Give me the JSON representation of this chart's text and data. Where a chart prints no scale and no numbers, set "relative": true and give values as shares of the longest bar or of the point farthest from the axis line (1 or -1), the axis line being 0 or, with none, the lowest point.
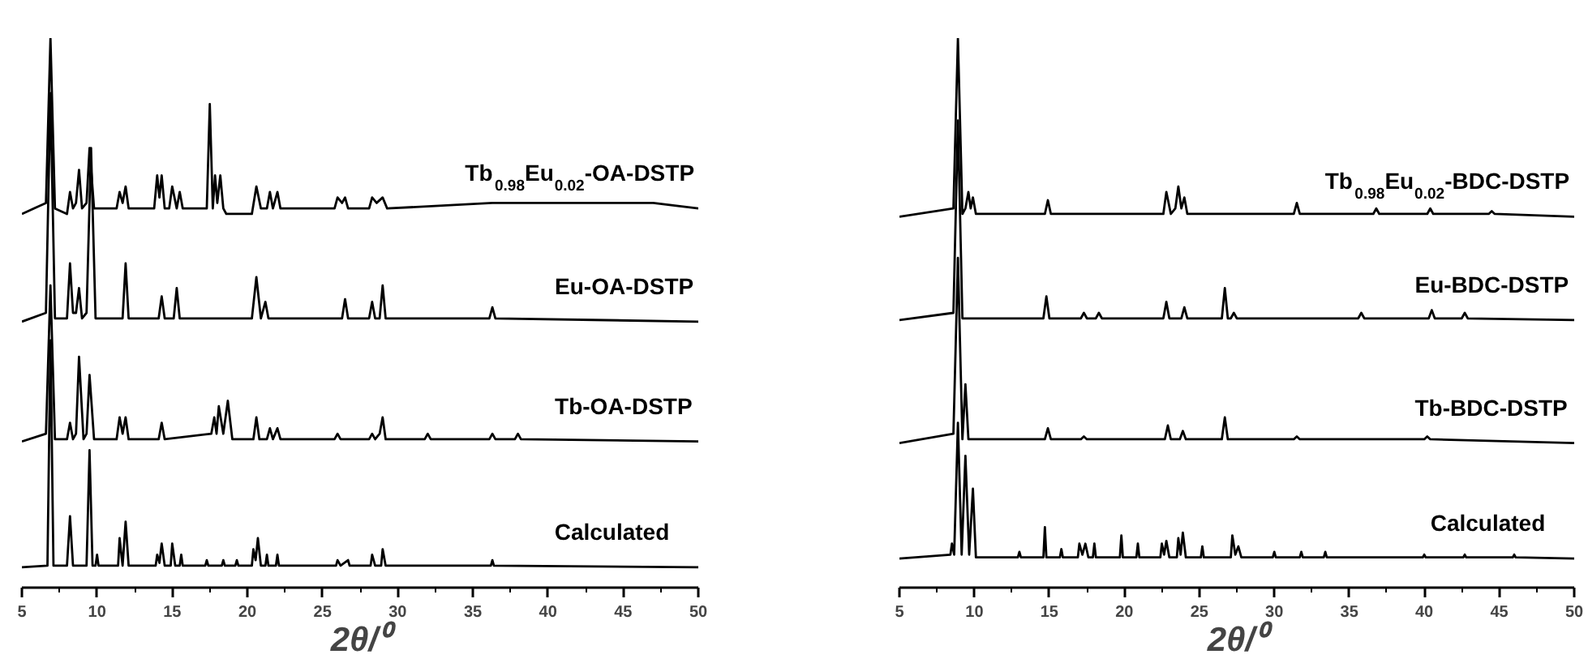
{
  "chart_data": [
    {
      "type": "line",
      "relative": true,
      "xlabel": "2θ/⁰",
      "xlim": [
        5,
        50
      ],
      "xticks": [
        5,
        10,
        15,
        20,
        25,
        30,
        35,
        40,
        45,
        50
      ],
      "tick_labels": "x",
      "grid": false,
      "marker": "none",
      "line_style": "solid",
      "series": [
        {
          "name": "Tb$_{0.98}$Eu$_{0.02}$-OA-DSTP",
          "color": "#000000",
          "x": [
            5,
            6.6,
            6.9,
            7.2,
            8.0,
            8.2,
            8.4,
            8.6,
            8.8,
            9.0,
            9.3,
            9.5,
            9.8,
            11.3,
            11.5,
            11.7,
            11.9,
            12.1,
            13.8,
            14.0,
            14.15,
            14.3,
            14.5,
            14.8,
            15.0,
            15.3,
            15.5,
            15.7,
            17.3,
            17.5,
            17.7,
            17.85,
            18.0,
            18.2,
            18.4,
            18.6,
            20.3,
            20.6,
            20.9,
            21.3,
            21.5,
            21.7,
            22.0,
            22.2,
            25.8,
            26.0,
            26.3,
            26.5,
            26.7,
            28.1,
            28.3,
            28.6,
            29.0,
            29.3,
            36.3,
            41.5,
            43,
            47,
            50
          ],
          "values": [
            0.68,
            0.7,
            1.0,
            0.69,
            0.68,
            0.72,
            0.69,
            0.7,
            0.76,
            0.69,
            0.7,
            0.8,
            0.69,
            0.69,
            0.72,
            0.7,
            0.73,
            0.69,
            0.69,
            0.75,
            0.71,
            0.75,
            0.69,
            0.69,
            0.73,
            0.69,
            0.72,
            0.69,
            0.69,
            0.88,
            0.69,
            0.75,
            0.7,
            0.75,
            0.69,
            0.68,
            0.68,
            0.73,
            0.69,
            0.69,
            0.72,
            0.69,
            0.72,
            0.69,
            0.69,
            0.71,
            0.7,
            0.71,
            0.69,
            0.69,
            0.71,
            0.7,
            0.71,
            0.69,
            0.7,
            0.7,
            0.7,
            0.7,
            0.69
          ]
        },
        {
          "name": "Eu-OA-DSTP",
          "color": "#000000",
          "x": [
            5,
            6.6,
            6.9,
            7.2,
            8.0,
            8.2,
            8.4,
            8.6,
            8.8,
            9.0,
            9.3,
            9.6,
            9.9,
            11.7,
            11.9,
            12.1,
            14.1,
            14.3,
            14.5,
            15.1,
            15.3,
            15.5,
            20.3,
            20.6,
            20.9,
            21.2,
            21.4,
            26.3,
            26.5,
            26.7,
            28.1,
            28.3,
            28.5,
            28.8,
            29.0,
            29.2,
            36.1,
            36.3,
            36.5,
            50
          ],
          "values": [
            0.484,
            0.5,
            0.9,
            0.49,
            0.49,
            0.59,
            0.5,
            0.5,
            0.545,
            0.49,
            0.5,
            0.8,
            0.49,
            0.49,
            0.59,
            0.49,
            0.49,
            0.53,
            0.49,
            0.49,
            0.545,
            0.49,
            0.49,
            0.565,
            0.49,
            0.52,
            0.49,
            0.49,
            0.525,
            0.49,
            0.49,
            0.52,
            0.49,
            0.49,
            0.55,
            0.49,
            0.49,
            0.51,
            0.49,
            0.484
          ]
        },
        {
          "name": "Tb-OA-DSTP",
          "color": "#000000",
          "x": [
            5,
            6.6,
            6.9,
            7.2,
            8.0,
            8.2,
            8.4,
            8.6,
            8.8,
            9.1,
            9.3,
            9.5,
            9.8,
            11.3,
            11.5,
            11.7,
            11.9,
            12.1,
            14.1,
            14.3,
            14.5,
            17.6,
            17.8,
            17.95,
            18.1,
            18.4,
            18.7,
            19.0,
            20.4,
            20.6,
            20.8,
            21.3,
            21.5,
            21.7,
            22.0,
            22.2,
            25.8,
            26.0,
            26.2,
            28.1,
            28.3,
            28.5,
            28.8,
            29.0,
            29.2,
            31.8,
            32.0,
            32.2,
            36.1,
            36.3,
            36.5,
            37.8,
            38.0,
            38.2,
            50
          ],
          "values": [
            0.266,
            0.28,
            0.55,
            0.27,
            0.27,
            0.3,
            0.27,
            0.28,
            0.42,
            0.27,
            0.28,
            0.387,
            0.27,
            0.27,
            0.31,
            0.28,
            0.31,
            0.27,
            0.27,
            0.3,
            0.27,
            0.28,
            0.31,
            0.28,
            0.33,
            0.28,
            0.34,
            0.27,
            0.27,
            0.31,
            0.27,
            0.27,
            0.29,
            0.27,
            0.29,
            0.27,
            0.27,
            0.28,
            0.27,
            0.27,
            0.28,
            0.27,
            0.28,
            0.31,
            0.27,
            0.27,
            0.28,
            0.27,
            0.27,
            0.28,
            0.27,
            0.27,
            0.28,
            0.27,
            0.266
          ]
        },
        {
          "name": "Calculated",
          "color": "#000000",
          "x": [
            5,
            6.7,
            6.9,
            7.1,
            8.0,
            8.2,
            8.4,
            9.3,
            9.5,
            9.7,
            9.9,
            10.0,
            10.1,
            11.4,
            11.5,
            11.7,
            11.9,
            12.1,
            13.9,
            14.0,
            14.15,
            14.3,
            14.5,
            14.9,
            15.0,
            15.2,
            15.5,
            15.6,
            15.7,
            17.2,
            17.3,
            17.4,
            18.3,
            18.4,
            18.5,
            19.2,
            19.3,
            19.4,
            20.3,
            20.4,
            20.55,
            20.7,
            20.9,
            21.2,
            21.3,
            21.4,
            21.9,
            22.0,
            22.1,
            25.9,
            26.0,
            26.2,
            26.7,
            26.8,
            28.2,
            28.3,
            28.5,
            28.9,
            29.0,
            29.2,
            36.2,
            36.3,
            36.4,
            50
          ],
          "values": [
            0.037,
            0.04,
            0.45,
            0.04,
            0.04,
            0.13,
            0.04,
            0.04,
            0.25,
            0.04,
            0.04,
            0.06,
            0.04,
            0.04,
            0.09,
            0.04,
            0.12,
            0.04,
            0.04,
            0.06,
            0.045,
            0.08,
            0.04,
            0.04,
            0.08,
            0.04,
            0.04,
            0.06,
            0.04,
            0.04,
            0.05,
            0.04,
            0.04,
            0.05,
            0.04,
            0.04,
            0.05,
            0.04,
            0.04,
            0.07,
            0.05,
            0.09,
            0.04,
            0.04,
            0.06,
            0.04,
            0.04,
            0.06,
            0.04,
            0.04,
            0.05,
            0.04,
            0.05,
            0.04,
            0.04,
            0.06,
            0.04,
            0.04,
            0.07,
            0.04,
            0.04,
            0.05,
            0.04,
            0.037
          ]
        }
      ]
    },
    {
      "type": "line",
      "relative": true,
      "xlabel": "2θ/⁰",
      "xlim": [
        5,
        50
      ],
      "xticks": [
        5,
        10,
        15,
        20,
        25,
        30,
        35,
        40,
        45,
        50
      ],
      "tick_labels": "x",
      "grid": false,
      "marker": "none",
      "line_style": "solid",
      "series": [
        {
          "name": "Tb$_{0.98}$Eu$_{0.02}$-BDC-DSTP",
          "color": "#000000",
          "x": [
            5,
            8.6,
            8.9,
            9.2,
            9.4,
            9.6,
            9.75,
            9.9,
            10.1,
            14.7,
            14.9,
            15.1,
            22.6,
            22.8,
            23.1,
            23.4,
            23.6,
            23.8,
            24.0,
            24.2,
            31.3,
            31.5,
            31.7,
            36.6,
            36.8,
            37.0,
            40.2,
            40.4,
            40.6,
            44.3,
            44.5,
            44.7,
            50
          ],
          "values": [
            0.675,
            0.69,
            1.0,
            0.68,
            0.69,
            0.72,
            0.69,
            0.71,
            0.68,
            0.68,
            0.705,
            0.68,
            0.68,
            0.72,
            0.68,
            0.69,
            0.73,
            0.69,
            0.71,
            0.68,
            0.68,
            0.7,
            0.68,
            0.68,
            0.69,
            0.68,
            0.68,
            0.69,
            0.68,
            0.68,
            0.685,
            0.68,
            0.675
          ]
        },
        {
          "name": "Eu-BDC-DSTP",
          "color": "#000000",
          "x": [
            5,
            8.6,
            8.9,
            9.2,
            14.6,
            14.8,
            15.0,
            17.1,
            17.3,
            17.5,
            18.1,
            18.3,
            18.5,
            22.6,
            22.8,
            23.0,
            23.8,
            24.0,
            24.2,
            26.5,
            26.7,
            26.9,
            27.1,
            27.3,
            27.5,
            35.6,
            35.8,
            36.0,
            40.3,
            40.5,
            40.7,
            42.5,
            42.7,
            42.9,
            50
          ],
          "values": [
            0.487,
            0.5,
            0.85,
            0.49,
            0.49,
            0.53,
            0.49,
            0.49,
            0.5,
            0.49,
            0.49,
            0.5,
            0.49,
            0.49,
            0.52,
            0.49,
            0.49,
            0.51,
            0.49,
            0.49,
            0.545,
            0.49,
            0.49,
            0.5,
            0.49,
            0.49,
            0.5,
            0.49,
            0.49,
            0.505,
            0.49,
            0.49,
            0.5,
            0.49,
            0.487
          ]
        },
        {
          "name": "Tb-BDC-DSTP",
          "color": "#000000",
          "x": [
            5,
            8.6,
            8.9,
            9.2,
            9.4,
            9.6,
            14.7,
            14.9,
            15.1,
            17.1,
            17.3,
            17.5,
            22.7,
            22.9,
            23.1,
            23.7,
            23.9,
            24.1,
            26.5,
            26.7,
            26.9,
            31.3,
            31.5,
            31.7,
            40.0,
            40.2,
            40.4,
            50
          ],
          "values": [
            0.263,
            0.28,
            0.6,
            0.27,
            0.37,
            0.27,
            0.27,
            0.29,
            0.27,
            0.27,
            0.275,
            0.27,
            0.27,
            0.295,
            0.27,
            0.27,
            0.285,
            0.27,
            0.27,
            0.31,
            0.27,
            0.27,
            0.275,
            0.27,
            0.27,
            0.275,
            0.27,
            0.263
          ]
        },
        {
          "name": "Calculated",
          "color": "#000000",
          "x": [
            5,
            8.4,
            8.5,
            8.65,
            8.9,
            9.15,
            9.4,
            9.65,
            9.9,
            10.1,
            12.9,
            13.0,
            13.1,
            14.6,
            14.7,
            14.8,
            15.7,
            15.8,
            15.9,
            16.9,
            17.0,
            17.2,
            17.4,
            17.6,
            17.9,
            18.0,
            18.1,
            19.7,
            19.8,
            19.9,
            20.8,
            20.9,
            21.0,
            22.4,
            22.5,
            22.65,
            22.8,
            23.0,
            23.5,
            23.6,
            23.75,
            23.9,
            24.1,
            25.1,
            25.2,
            25.3,
            27.1,
            27.2,
            27.4,
            27.6,
            27.8,
            29.9,
            30.0,
            30.1,
            31.7,
            31.8,
            31.9,
            33.3,
            33.4,
            33.5,
            39.9,
            40.0,
            40.1,
            42.6,
            42.7,
            42.8,
            45.9,
            46.0,
            46.1,
            50
          ],
          "values": [
            0.053,
            0.06,
            0.08,
            0.06,
            0.3,
            0.06,
            0.24,
            0.06,
            0.18,
            0.055,
            0.055,
            0.065,
            0.055,
            0.055,
            0.11,
            0.055,
            0.055,
            0.07,
            0.055,
            0.055,
            0.08,
            0.06,
            0.08,
            0.055,
            0.055,
            0.08,
            0.055,
            0.055,
            0.095,
            0.055,
            0.055,
            0.08,
            0.055,
            0.055,
            0.08,
            0.06,
            0.085,
            0.055,
            0.055,
            0.09,
            0.06,
            0.1,
            0.055,
            0.055,
            0.075,
            0.055,
            0.055,
            0.095,
            0.06,
            0.075,
            0.055,
            0.055,
            0.065,
            0.055,
            0.055,
            0.065,
            0.055,
            0.055,
            0.065,
            0.055,
            0.055,
            0.06,
            0.055,
            0.055,
            0.06,
            0.055,
            0.055,
            0.06,
            0.055,
            0.053
          ]
        }
      ]
    }
  ]
}
